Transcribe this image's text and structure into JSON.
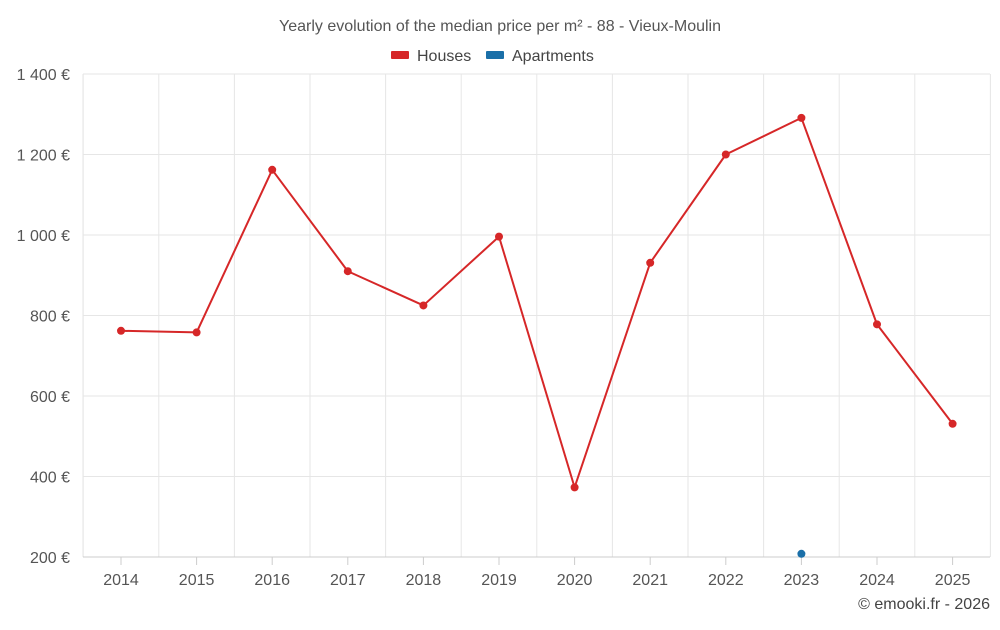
{
  "chart_data": {
    "type": "line",
    "title": "Yearly evolution of the median price per m² - 88 - Vieux-Moulin",
    "xlabel": "",
    "ylabel": "",
    "categories": [
      "2014",
      "2015",
      "2016",
      "2017",
      "2018",
      "2019",
      "2020",
      "2021",
      "2022",
      "2023",
      "2024",
      "2025"
    ],
    "ylim": [
      200,
      1400
    ],
    "yticks": [
      200,
      400,
      600,
      800,
      1000,
      1200,
      1400
    ],
    "ytick_labels": [
      "200 €",
      "400 €",
      "600 €",
      "800 €",
      "1 000 €",
      "1 200 €",
      "1 400 €"
    ],
    "grid": true,
    "legend_position": "top-center",
    "series": [
      {
        "name": "Houses",
        "color": "#d62728",
        "values": [
          762,
          758,
          1162,
          910,
          825,
          996,
          373,
          931,
          1200,
          1291,
          778,
          531
        ]
      },
      {
        "name": "Apartments",
        "color": "#1a6fa8",
        "values": [
          null,
          null,
          null,
          null,
          null,
          null,
          null,
          null,
          null,
          208,
          null,
          null
        ]
      }
    ]
  },
  "credit": "© emooki.fr - 2026"
}
